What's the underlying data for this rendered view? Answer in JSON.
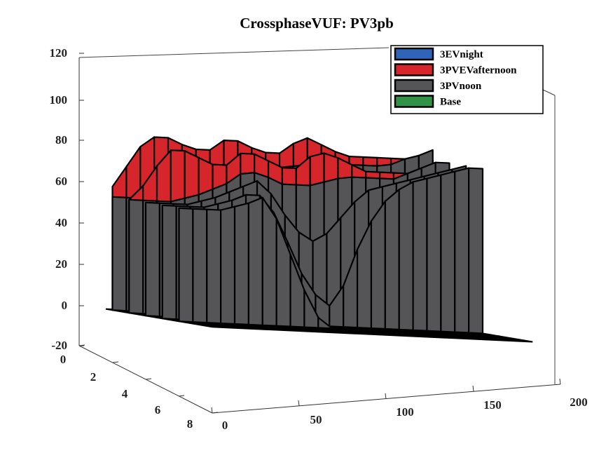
{
  "chart_data": {
    "type": "3d-waterfall",
    "title": "CrossphaseVUF: PV3pb",
    "xlabel": "",
    "ylabel": "",
    "zlabel": "",
    "x_ticks": [
      "0",
      "50",
      "100",
      "150",
      "200"
    ],
    "y_ticks": [
      "0",
      "2",
      "4",
      "6",
      "8"
    ],
    "z_ticks": [
      "120",
      "100",
      "80",
      "60",
      "40",
      "20",
      "0",
      "-20"
    ],
    "xlim": [
      0,
      200
    ],
    "ylim": [
      0,
      8
    ],
    "zlim": [
      -20,
      120
    ],
    "legend_position": "top-right",
    "series": [
      {
        "name": "3EVnight",
        "color": "#2f64b8"
      },
      {
        "name": "3PVEVafternoon",
        "color": "#d7262b"
      },
      {
        "name": "3PVnoon",
        "color": "#555558"
      },
      {
        "name": "Base",
        "color": "#2f9247"
      }
    ],
    "profile_x": [
      0,
      8,
      16,
      24,
      32,
      40,
      48,
      56,
      64,
      72,
      80,
      88,
      96,
      104,
      112,
      120,
      128,
      136,
      144,
      152,
      160,
      168,
      176,
      184
    ],
    "profiles": {
      "noon": [
        [
          0,
          0,
          0,
          0,
          0,
          0,
          0,
          0,
          0,
          0,
          0,
          0,
          0,
          0,
          0,
          0,
          0,
          0,
          0,
          0,
          0,
          0,
          0,
          0
        ],
        [
          0,
          0,
          0,
          0,
          0,
          0,
          0,
          0,
          0,
          0,
          0,
          0,
          0,
          0,
          0,
          0,
          0,
          0,
          0,
          0,
          0,
          0,
          0,
          0
        ],
        [
          55,
          55,
          55,
          55,
          57,
          59,
          62,
          63,
          70,
          72,
          72,
          72,
          73,
          74,
          75,
          75,
          76,
          76,
          76,
          76,
          77,
          80,
          82,
          85
        ],
        [
          55,
          55,
          55,
          55,
          57,
          59,
          62,
          65,
          70,
          71,
          69,
          66,
          66,
          66,
          68,
          70,
          71,
          71,
          71,
          71,
          74,
          77,
          80,
          80
        ],
        [
          55,
          55,
          55,
          55,
          57,
          59,
          62,
          65,
          68,
          62,
          52,
          44,
          40,
          44,
          52,
          60,
          66,
          68,
          70,
          72,
          74,
          76,
          78,
          80
        ],
        [
          55,
          55,
          55,
          55,
          57,
          59,
          62,
          62,
          54,
          40,
          25,
          15,
          10,
          20,
          38,
          52,
          62,
          68,
          72,
          74,
          76,
          78,
          80,
          80
        ],
        [
          55,
          55,
          55,
          55,
          57,
          59,
          62,
          52,
          35,
          18,
          5,
          0,
          0,
          0,
          0,
          0,
          0,
          0,
          0,
          0,
          0,
          0,
          0,
          0
        ],
        [
          0,
          0,
          0,
          0,
          0,
          0,
          0,
          0,
          0,
          0,
          0,
          0,
          0,
          0,
          0,
          0,
          0,
          0,
          0,
          0,
          0,
          0,
          0,
          0
        ],
        [
          0,
          0,
          0,
          0,
          0,
          0,
          0,
          0,
          0,
          0,
          0,
          0,
          0,
          0,
          0,
          0,
          0,
          0,
          0,
          0,
          0,
          0,
          0,
          0
        ]
      ],
      "afternoon": [
        [
          0,
          0,
          0,
          0,
          0,
          0,
          0,
          0,
          0,
          0,
          0,
          0,
          0,
          0,
          0,
          0,
          0,
          0,
          0,
          0,
          0,
          0,
          0,
          0
        ],
        [
          0,
          0,
          0,
          0,
          0,
          0,
          0,
          0,
          0,
          0,
          0,
          0,
          0,
          0,
          0,
          0,
          0,
          0,
          0,
          0,
          0,
          0,
          0,
          0
        ],
        [
          60,
          70,
          80,
          85,
          85,
          82,
          80,
          80,
          85,
          85,
          82,
          80,
          80,
          85,
          88,
          85,
          82,
          80,
          80,
          80,
          80,
          80,
          80,
          80
        ],
        [
          55,
          62,
          72,
          80,
          80,
          77,
          74,
          74,
          80,
          80,
          77,
          74,
          74,
          80,
          82,
          80,
          77,
          74,
          74,
          74,
          74,
          74,
          74,
          74
        ],
        [
          0,
          0,
          0,
          0,
          0,
          0,
          0,
          0,
          0,
          0,
          0,
          0,
          0,
          0,
          0,
          0,
          0,
          0,
          0,
          0,
          0,
          0,
          0,
          0
        ],
        [
          0,
          0,
          0,
          0,
          0,
          0,
          0,
          0,
          0,
          0,
          0,
          0,
          0,
          0,
          0,
          0,
          0,
          0,
          0,
          0,
          0,
          0,
          0,
          0
        ],
        [
          0,
          0,
          0,
          0,
          0,
          0,
          0,
          0,
          0,
          0,
          0,
          0,
          0,
          0,
          0,
          0,
          0,
          0,
          0,
          0,
          0,
          0,
          0,
          0
        ],
        [
          0,
          0,
          0,
          0,
          0,
          0,
          0,
          0,
          0,
          0,
          0,
          0,
          0,
          0,
          0,
          0,
          0,
          0,
          0,
          0,
          0,
          0,
          0,
          0
        ],
        [
          0,
          0,
          0,
          0,
          0,
          0,
          0,
          0,
          0,
          0,
          0,
          0,
          0,
          0,
          0,
          0,
          0,
          0,
          0,
          0,
          0,
          0,
          0,
          0
        ]
      ]
    }
  }
}
